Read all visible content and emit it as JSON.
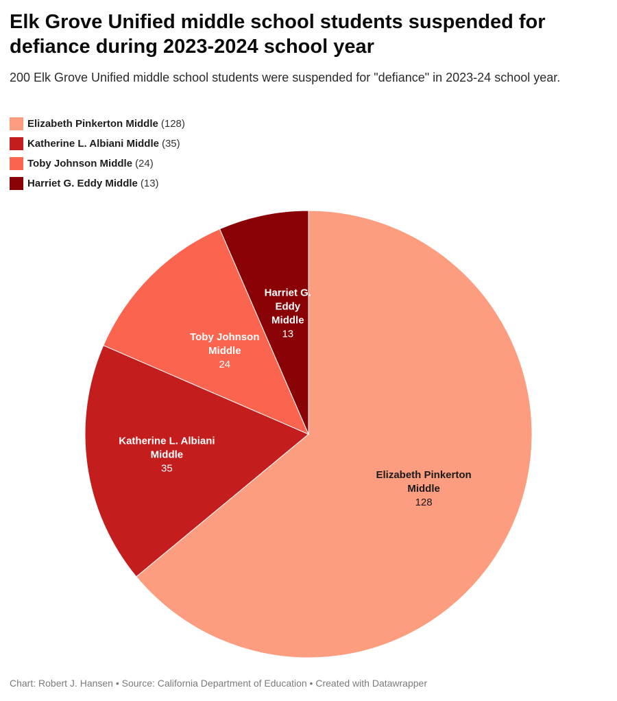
{
  "title": "Elk Grove Unified middle school students suspended for defiance during 2023-2024 school year",
  "subtitle": "200 Elk Grove Unified middle school students were suspended for \"defiance\" in 2023-24 school year.",
  "chart_data": {
    "type": "pie",
    "title": "Elk Grove Unified middle school students suspended for defiance during 2023-2024 school year",
    "subtitle": "200 Elk Grove Unified middle school students were suspended for \"defiance\" in 2023-24 school year.",
    "legend_placement": "top-left",
    "slices": [
      {
        "name": "Elizabeth Pinkerton Middle",
        "value": 128,
        "color": "#fb9d7e",
        "label_lines": [
          "Elizabeth Pinkerton",
          "Middle"
        ],
        "label_color": "#1a1a1a"
      },
      {
        "name": "Katherine L. Albiani Middle",
        "value": 35,
        "color": "#c41d1d",
        "label_lines": [
          "Katherine L. Albiani",
          "Middle"
        ],
        "label_color": "#ffffff"
      },
      {
        "name": "Toby Johnson Middle",
        "value": 24,
        "color": "#fb644f",
        "label_lines": [
          "Toby Johnson",
          "Middle"
        ],
        "label_color": "#ffffff"
      },
      {
        "name": "Harriet G. Eddy Middle",
        "value": 13,
        "color": "#890205",
        "label_lines": [
          "Harriet G.",
          "Eddy",
          "Middle"
        ],
        "label_color": "#ffffff"
      }
    ]
  },
  "footer": "Chart: Robert J. Hansen • Source: California Department of Education • Created with Datawrapper"
}
